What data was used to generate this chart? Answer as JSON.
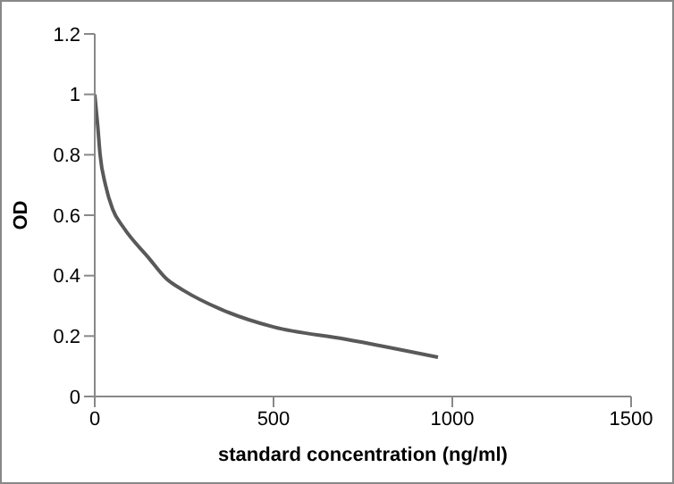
{
  "chart_data": {
    "type": "line",
    "xlabel": "standard concentration (ng/ml)",
    "ylabel": "OD",
    "x": [
      0,
      8,
      15,
      30,
      50,
      80,
      150,
      200,
      250,
      350,
      500,
      700,
      960
    ],
    "series": [
      {
        "color": "#595959",
        "values": [
          1.0,
          0.9,
          0.8,
          0.7,
          0.62,
          0.56,
          0.46,
          0.39,
          0.35,
          0.29,
          0.23,
          0.19,
          0.13
        ]
      }
    ],
    "xlim": [
      0,
      1500
    ],
    "xticks": [
      0,
      500,
      1000,
      1500
    ],
    "ylim": [
      0,
      1.2
    ],
    "yticks": [
      0,
      0.2,
      0.4,
      0.6,
      0.8,
      1,
      1.2
    ],
    "grid": false,
    "legend": false,
    "marker": "none",
    "line_style": "solid"
  }
}
